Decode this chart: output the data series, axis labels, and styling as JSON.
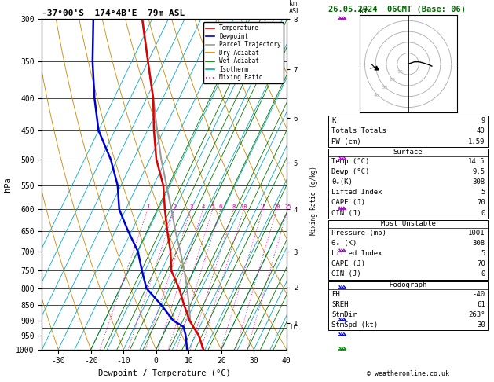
{
  "title_left": "-37°00'S  174°4B'E  79m ASL",
  "title_right": "26.05.2024  06GMT (Base: 06)",
  "xlabel": "Dewpoint / Temperature (°C)",
  "ylabel_left": "hPa",
  "ylabel_mixing": "Mixing Ratio (g/kg)",
  "pressure_levels": [
    300,
    350,
    400,
    450,
    500,
    550,
    600,
    650,
    700,
    750,
    800,
    850,
    900,
    950,
    1000
  ],
  "temp_min": -35,
  "temp_max": 40,
  "temp_ticks": [
    -30,
    -20,
    -10,
    0,
    10,
    20,
    30,
    40
  ],
  "km_ticks": [
    1,
    2,
    3,
    4,
    5,
    6,
    7,
    8
  ],
  "km_pressures": [
    908,
    795,
    697,
    596,
    502,
    425,
    355,
    295
  ],
  "lcl_pressure": 923,
  "legend_entries": [
    {
      "label": "Temperature",
      "color": "#dd0000",
      "ls": "-"
    },
    {
      "label": "Dewpoint",
      "color": "#0000cc",
      "ls": "-"
    },
    {
      "label": "Parcel Trajectory",
      "color": "#999999",
      "ls": "-"
    },
    {
      "label": "Dry Adiabat",
      "color": "#cc8800",
      "ls": "-"
    },
    {
      "label": "Wet Adiabat",
      "color": "#007700",
      "ls": "-"
    },
    {
      "label": "Isotherm",
      "color": "#00aacc",
      "ls": "-"
    },
    {
      "label": "Mixing Ratio",
      "color": "#dd00aa",
      "ls": ":"
    }
  ],
  "temp_profile_p": [
    1000,
    950,
    920,
    900,
    850,
    800,
    750,
    700,
    650,
    600,
    550,
    500,
    450,
    400,
    350,
    300
  ],
  "temp_profile_t": [
    14.5,
    11.0,
    8.0,
    6.0,
    2.0,
    -2.0,
    -7.0,
    -10.0,
    -14.0,
    -18.0,
    -22.0,
    -28.0,
    -33.0,
    -38.0,
    -45.0,
    -53.0
  ],
  "dewp_profile_p": [
    1000,
    950,
    920,
    900,
    850,
    800,
    750,
    700,
    650,
    600,
    550,
    500,
    450,
    400,
    350,
    300
  ],
  "dewp_profile_t": [
    9.5,
    7.0,
    5.0,
    1.0,
    -5.0,
    -12.0,
    -16.0,
    -20.0,
    -26.0,
    -32.0,
    -36.0,
    -42.0,
    -50.0,
    -56.0,
    -62.0,
    -68.0
  ],
  "parcel_profile_p": [
    1000,
    950,
    920,
    900,
    850,
    800,
    750,
    700,
    650,
    600,
    550,
    500,
    450,
    400,
    350,
    300
  ],
  "parcel_profile_t": [
    14.5,
    11.0,
    8.0,
    6.2,
    3.5,
    0.5,
    -3.0,
    -7.0,
    -11.5,
    -16.0,
    -21.0,
    -26.5,
    -32.0,
    -38.0,
    -45.0,
    -53.0
  ],
  "info_K": 9,
  "info_TT": 40,
  "info_PW": 1.59,
  "info_surf_temp": 14.5,
  "info_surf_dewp": 9.5,
  "info_surf_theta_e": 308,
  "info_surf_li": 5,
  "info_surf_cape": 70,
  "info_surf_cin": 0,
  "info_mu_pres": 1001,
  "info_mu_theta_e": 308,
  "info_mu_li": 5,
  "info_mu_cape": 70,
  "info_mu_cin": 0,
  "info_hodo_EH": -40,
  "info_hodo_SREH": 61,
  "info_hodo_StmDir": 263,
  "info_hodo_StmSpd": 30,
  "mixing_ratio_values": [
    1,
    2,
    3,
    4,
    5,
    6,
    8,
    10,
    15,
    20,
    25
  ],
  "barb_purple_p": [
    300,
    500,
    600,
    700
  ],
  "barb_blue_p": [
    800,
    900,
    950
  ],
  "barb_green_p": [
    1000
  ]
}
